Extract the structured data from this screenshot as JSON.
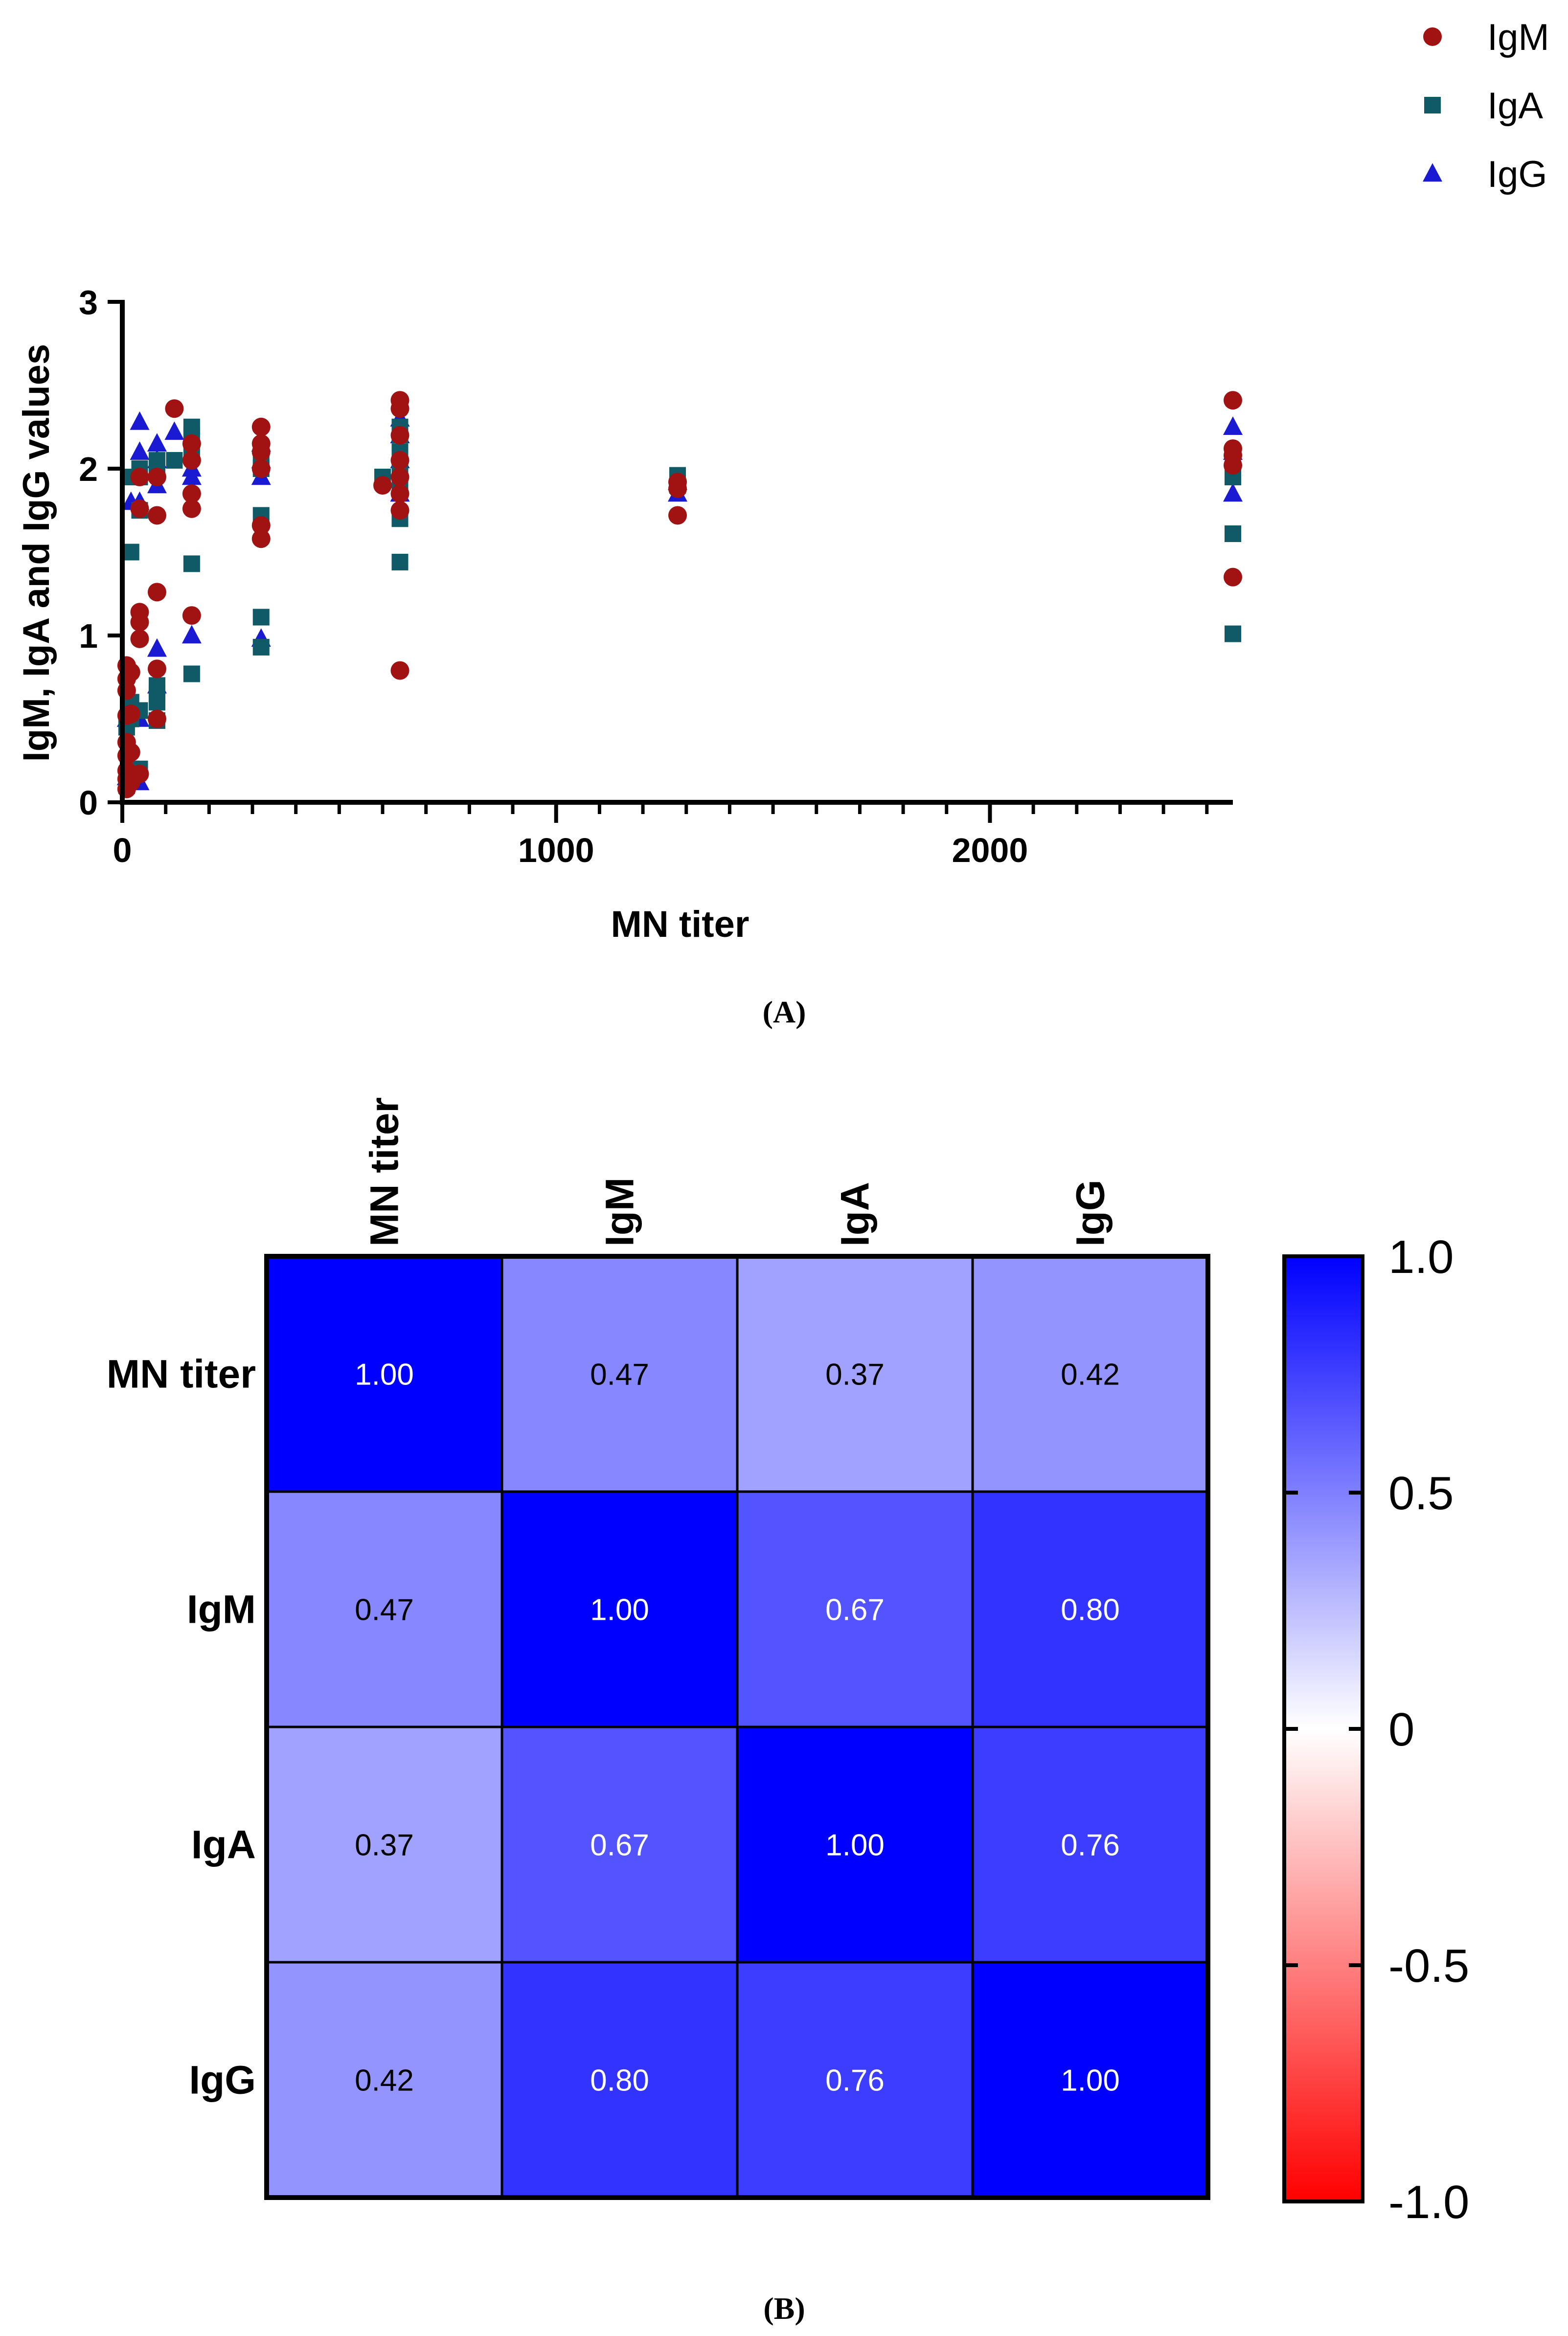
{
  "panel_labels": {
    "a": "(A)",
    "b": "(B)"
  },
  "colors": {
    "IgM": "#a11313",
    "IgA": "#0f5a66",
    "IgG": "#1a1ad2",
    "axis": "#000000",
    "heat_high": "#0000ff",
    "heat_mid": "#ffffff",
    "heat_low": "#ff0000"
  },
  "chart_data": [
    {
      "type": "scatter",
      "title": "",
      "xlabel": "MN titer",
      "ylabel": "IgM, IgA and IgG values",
      "xlim": [
        0,
        2560
      ],
      "ylim": [
        0,
        3
      ],
      "x_ticks": [
        0,
        1000,
        2000
      ],
      "x_tick_labels": [
        "0",
        "1000",
        "2000"
      ],
      "y_ticks": [
        0,
        1,
        2,
        3
      ],
      "y_tick_labels": [
        "0",
        "1",
        "2",
        "3"
      ],
      "legend": [
        "IgM",
        "IgA",
        "IgG"
      ],
      "legend_position": "top-right, outside plot",
      "series": [
        {
          "name": "IgM",
          "marker": "circle",
          "points": [
            [
              10,
              0.08
            ],
            [
              10,
              0.14
            ],
            [
              10,
              0.19
            ],
            [
              10,
              0.28
            ],
            [
              10,
              0.36
            ],
            [
              10,
              0.52
            ],
            [
              10,
              0.67
            ],
            [
              10,
              0.74
            ],
            [
              10,
              0.82
            ],
            [
              20,
              0.12
            ],
            [
              20,
              0.3
            ],
            [
              20,
              0.53
            ],
            [
              20,
              0.78
            ],
            [
              40,
              0.17
            ],
            [
              40,
              0.98
            ],
            [
              40,
              1.08
            ],
            [
              40,
              1.14
            ],
            [
              40,
              1.76
            ],
            [
              40,
              1.95
            ],
            [
              80,
              0.5
            ],
            [
              80,
              0.8
            ],
            [
              80,
              1.26
            ],
            [
              80,
              1.72
            ],
            [
              80,
              1.95
            ],
            [
              120,
              2.36
            ],
            [
              160,
              1.12
            ],
            [
              160,
              1.76
            ],
            [
              160,
              1.85
            ],
            [
              160,
              2.05
            ],
            [
              160,
              2.15
            ],
            [
              320,
              1.58
            ],
            [
              320,
              1.66
            ],
            [
              320,
              2.0
            ],
            [
              320,
              2.1
            ],
            [
              320,
              2.15
            ],
            [
              320,
              2.25
            ],
            [
              600,
              1.9
            ],
            [
              640,
              0.79
            ],
            [
              640,
              1.75
            ],
            [
              640,
              1.85
            ],
            [
              640,
              1.95
            ],
            [
              640,
              2.05
            ],
            [
              640,
              2.2
            ],
            [
              640,
              2.36
            ],
            [
              640,
              2.41
            ],
            [
              1280,
              1.72
            ],
            [
              1280,
              1.88
            ],
            [
              1280,
              1.92
            ],
            [
              2560,
              1.35
            ],
            [
              2560,
              2.02
            ],
            [
              2560,
              2.08
            ],
            [
              2560,
              2.12
            ],
            [
              2560,
              2.41
            ]
          ]
        },
        {
          "name": "IgA",
          "marker": "square",
          "points": [
            [
              10,
              0.1
            ],
            [
              10,
              0.45
            ],
            [
              20,
              0.2
            ],
            [
              20,
              0.5
            ],
            [
              20,
              0.6
            ],
            [
              20,
              1.5
            ],
            [
              20,
              1.95
            ],
            [
              40,
              0.2
            ],
            [
              40,
              0.55
            ],
            [
              40,
              0.55
            ],
            [
              40,
              1.75
            ],
            [
              40,
              1.95
            ],
            [
              40,
              2.0
            ],
            [
              80,
              0.49
            ],
            [
              80,
              0.6
            ],
            [
              80,
              0.65
            ],
            [
              80,
              0.7
            ],
            [
              80,
              2.0
            ],
            [
              80,
              2.05
            ],
            [
              120,
              2.05
            ],
            [
              160,
              0.77
            ],
            [
              160,
              1.43
            ],
            [
              160,
              2.1
            ],
            [
              160,
              2.2
            ],
            [
              160,
              2.25
            ],
            [
              320,
              0.93
            ],
            [
              320,
              1.11
            ],
            [
              320,
              1.72
            ],
            [
              320,
              2.0
            ],
            [
              320,
              2.05
            ],
            [
              600,
              1.95
            ],
            [
              640,
              1.44
            ],
            [
              640,
              1.7
            ],
            [
              640,
              1.9
            ],
            [
              640,
              2.0
            ],
            [
              640,
              2.1
            ],
            [
              640,
              2.2
            ],
            [
              640,
              2.25
            ],
            [
              1280,
              1.9
            ],
            [
              1280,
              1.96
            ],
            [
              2560,
              1.01
            ],
            [
              2560,
              1.61
            ],
            [
              2560,
              1.95
            ],
            [
              2560,
              2.0
            ]
          ]
        },
        {
          "name": "IgG",
          "marker": "triangle",
          "points": [
            [
              10,
              0.15
            ],
            [
              10,
              0.5
            ],
            [
              20,
              0.2
            ],
            [
              20,
              1.8
            ],
            [
              40,
              0.12
            ],
            [
              40,
              0.5
            ],
            [
              40,
              1.8
            ],
            [
              40,
              2.1
            ],
            [
              40,
              2.28
            ],
            [
              80,
              0.7
            ],
            [
              80,
              0.92
            ],
            [
              80,
              1.9
            ],
            [
              80,
              2.05
            ],
            [
              80,
              2.15
            ],
            [
              120,
              2.22
            ],
            [
              160,
              1.0
            ],
            [
              160,
              1.95
            ],
            [
              160,
              2.0
            ],
            [
              320,
              0.98
            ],
            [
              320,
              1.95
            ],
            [
              320,
              2.05
            ],
            [
              320,
              2.15
            ],
            [
              640,
              1.85
            ],
            [
              640,
              2.05
            ],
            [
              640,
              2.2
            ],
            [
              640,
              2.3
            ],
            [
              1280,
              1.85
            ],
            [
              1280,
              1.92
            ],
            [
              2560,
              1.85
            ],
            [
              2560,
              2.1
            ],
            [
              2560,
              2.25
            ]
          ]
        }
      ]
    },
    {
      "type": "heatmap",
      "title": "",
      "row_labels": [
        "MN titer",
        "IgM",
        "IgA",
        "IgG"
      ],
      "col_labels": [
        "MN titer",
        "IgM",
        "IgA",
        "IgG"
      ],
      "values": [
        [
          1.0,
          0.47,
          0.37,
          0.42
        ],
        [
          0.47,
          1.0,
          0.67,
          0.8
        ],
        [
          0.37,
          0.67,
          1.0,
          0.76
        ],
        [
          0.42,
          0.8,
          0.76,
          1.0
        ]
      ],
      "value_labels": [
        [
          "1.00",
          "0.47",
          "0.37",
          "0.42"
        ],
        [
          "0.47",
          "1.00",
          "0.67",
          "0.80"
        ],
        [
          "0.37",
          "0.67",
          "1.00",
          "0.76"
        ],
        [
          "0.42",
          "0.80",
          "0.76",
          "1.00"
        ]
      ],
      "colorbar": {
        "range": [
          -1,
          1
        ],
        "ticks": [
          1.0,
          0.5,
          0,
          -0.5,
          -1.0
        ],
        "tick_labels": [
          "1.0",
          "0.5",
          "0",
          "-0.5",
          "-1.0"
        ]
      }
    }
  ]
}
